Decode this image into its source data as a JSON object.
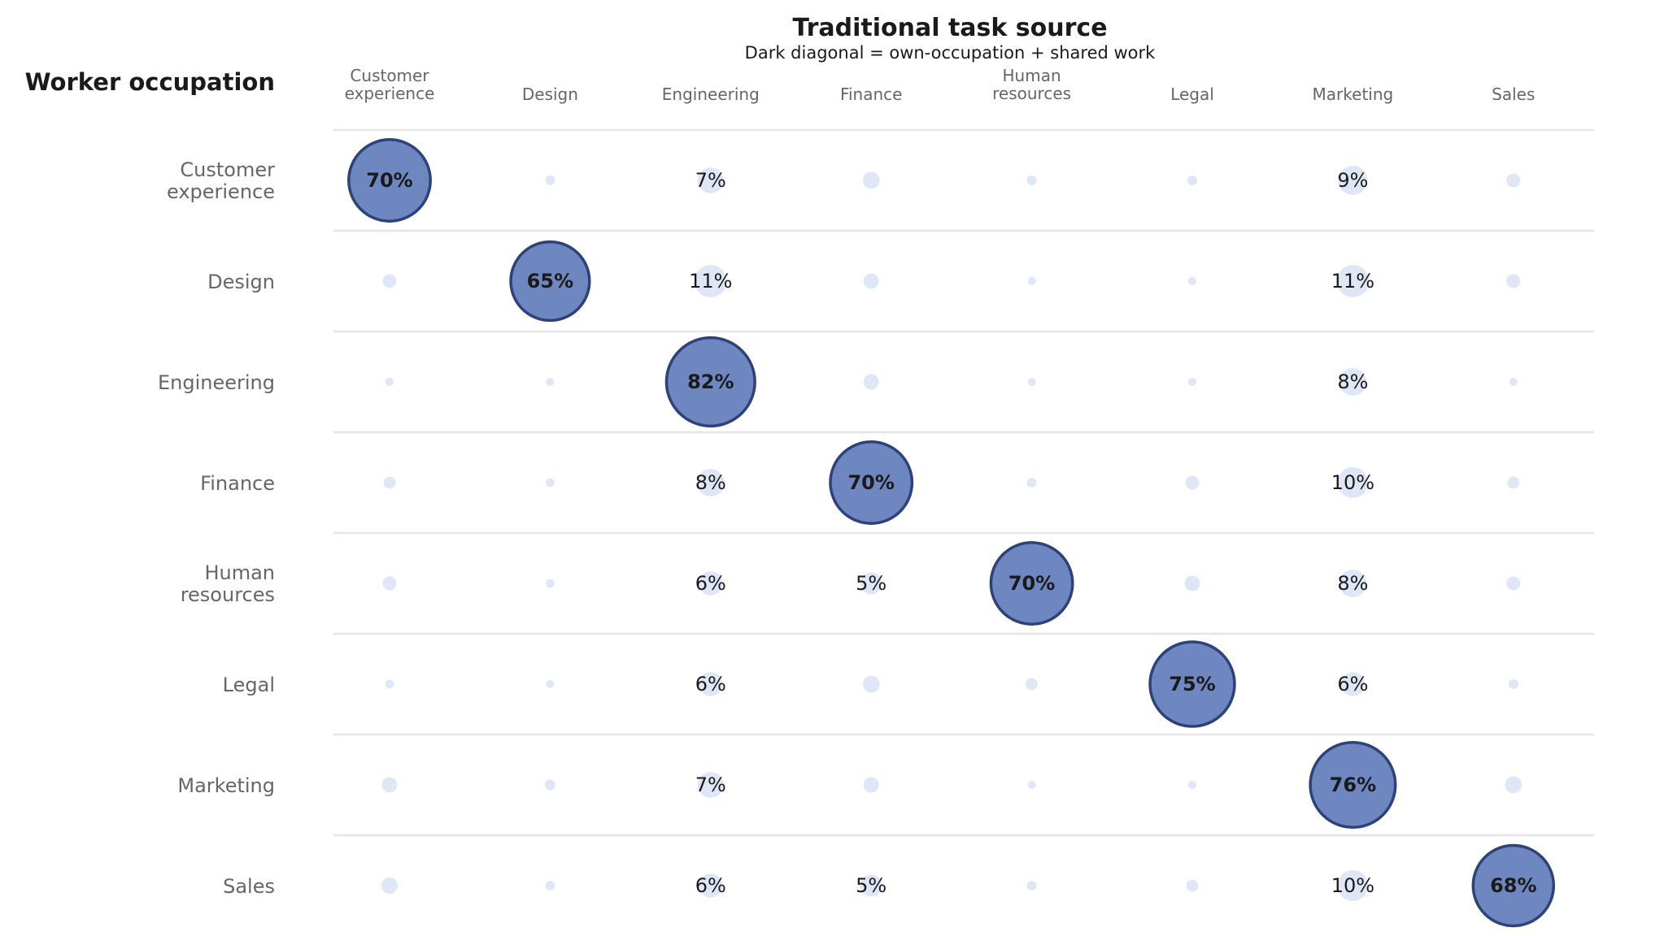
{
  "chart_data": {
    "type": "bubble-matrix",
    "title": "Traditional task source",
    "subtitle": "Dark diagonal = own-occupation + shared work",
    "ylabel": "Worker occupation",
    "columns": [
      [
        "Customer",
        "experience"
      ],
      [
        "Design"
      ],
      [
        "Engineering"
      ],
      [
        "Finance"
      ],
      [
        "Human",
        "resources"
      ],
      [
        "Legal"
      ],
      [
        "Marketing"
      ],
      [
        "Sales"
      ]
    ],
    "rows": [
      [
        "Customer",
        "experience"
      ],
      [
        "Design"
      ],
      [
        "Engineering"
      ],
      [
        "Finance"
      ],
      [
        "Human",
        "resources"
      ],
      [
        "Legal"
      ],
      [
        "Marketing"
      ],
      [
        "Sales"
      ]
    ],
    "values": [
      [
        70,
        1,
        7,
        3,
        1,
        1,
        9,
        2
      ],
      [
        2,
        65,
        11,
        2.5,
        0.5,
        0.7,
        11,
        2
      ],
      [
        0.5,
        0.5,
        82,
        2.5,
        0.4,
        0.5,
        8,
        0.6
      ],
      [
        1.5,
        0.8,
        8,
        70,
        1,
        2,
        10,
        1.5
      ],
      [
        2,
        0.8,
        6,
        5,
        70,
        2.5,
        8,
        2
      ],
      [
        0.8,
        0.5,
        6,
        3,
        1.5,
        75,
        6,
        1
      ],
      [
        2.5,
        1.2,
        7,
        2.5,
        0.6,
        0.6,
        76,
        3
      ],
      [
        2.8,
        1,
        6,
        5,
        1,
        1.5,
        10,
        68
      ]
    ],
    "labels": [
      [
        "70%",
        "",
        "7%",
        "",
        "",
        "",
        "9%",
        ""
      ],
      [
        "",
        "65%",
        "11%",
        "",
        "",
        "",
        "11%",
        ""
      ],
      [
        "",
        "",
        "82%",
        "",
        "",
        "",
        "8%",
        ""
      ],
      [
        "",
        "",
        "8%",
        "70%",
        "",
        "",
        "10%",
        ""
      ],
      [
        "",
        "",
        "6%",
        "5%",
        "70%",
        "",
        "8%",
        ""
      ],
      [
        "",
        "",
        "6%",
        "",
        "",
        "75%",
        "6%",
        ""
      ],
      [
        "",
        "",
        "7%",
        "",
        "",
        "",
        "76%",
        ""
      ],
      [
        "",
        "",
        "6%",
        "5%",
        "",
        "",
        "10%",
        "68%"
      ]
    ],
    "colors": {
      "diagonal_fill": "#6f87c1",
      "diagonal_stroke": "#2e4178",
      "bubble_fill": "#dfe7f7",
      "gridline": "#e6e6e6",
      "text": "#1a1a1a",
      "muted_text": "#666666"
    }
  }
}
